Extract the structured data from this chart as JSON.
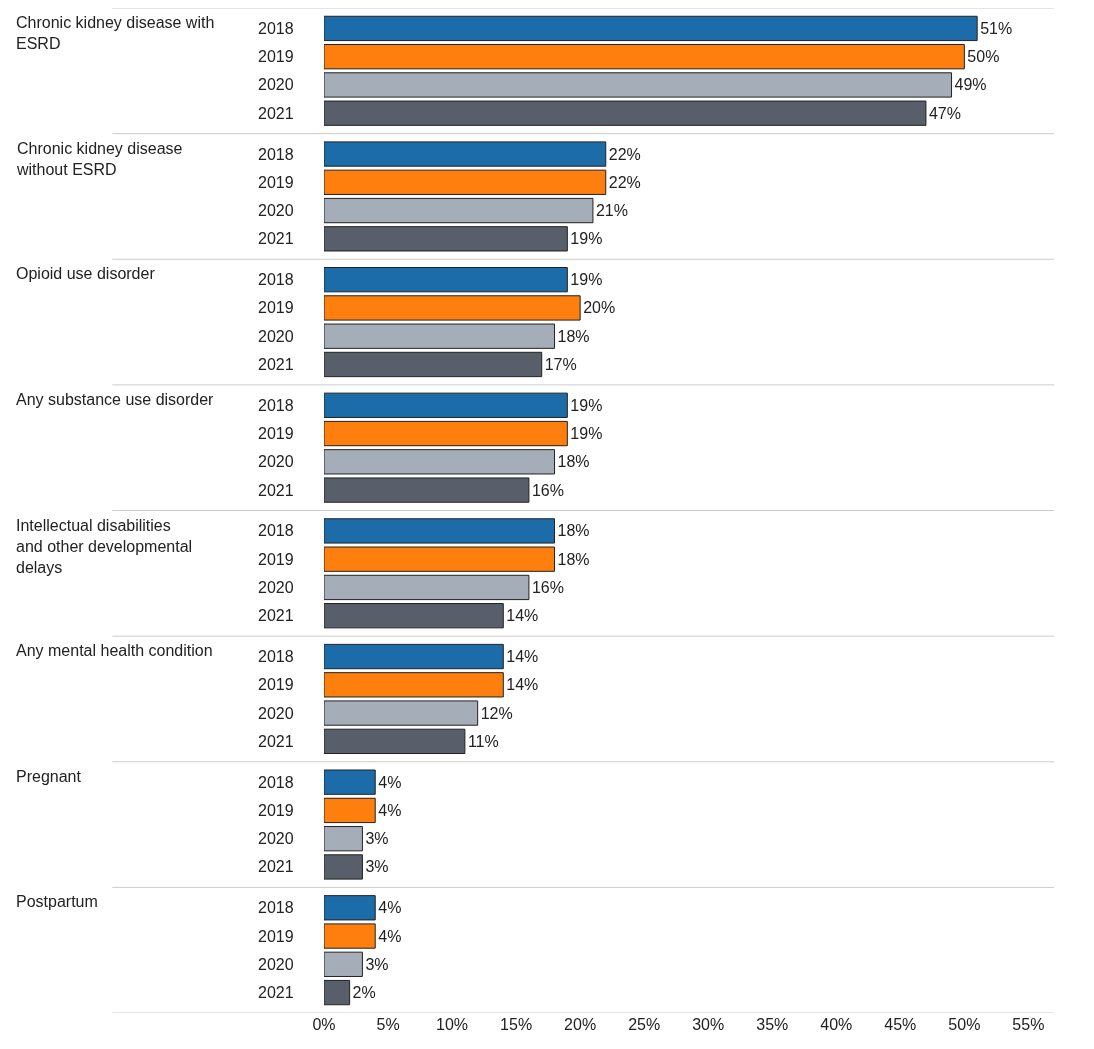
{
  "chart_data": {
    "type": "bar",
    "orientation": "horizontal",
    "categories": [
      "Chronic kidney disease with ESRD",
      "Chronic kidney disease without ESRD",
      "Opioid use disorder",
      "Any substance use disorder",
      "Intellectual disabilities and other developmental delays",
      "Any mental health condition",
      "Pregnant",
      "Postpartum"
    ],
    "series": [
      {
        "name": "2018",
        "color": "#1b6ca8",
        "values": [
          51,
          22,
          19,
          19,
          18,
          14,
          4,
          4
        ],
        "value_labels": [
          "51%",
          "22%",
          "19%",
          "19%",
          "18%",
          "14%",
          "4%",
          "4%"
        ]
      },
      {
        "name": "2019",
        "color": "#ff7f0e",
        "values": [
          50,
          22,
          20,
          19,
          18,
          14,
          4,
          4
        ],
        "value_labels": [
          "50%",
          "22%",
          "20%",
          "19%",
          "18%",
          "14%",
          "4%",
          "4%"
        ]
      },
      {
        "name": "2020",
        "color": "#a5adb8",
        "values": [
          49,
          21,
          18,
          18,
          16,
          12,
          3,
          3
        ],
        "value_labels": [
          "49%",
          "21%",
          "18%",
          "18%",
          "16%",
          "12%",
          "3%",
          "3%"
        ]
      },
      {
        "name": "2021",
        "color": "#585e6a",
        "values": [
          47,
          19,
          17,
          16,
          14,
          11,
          3,
          2
        ],
        "value_labels": [
          "47%",
          "19%",
          "17%",
          "16%",
          "14%",
          "11%",
          "3%",
          "2%"
        ]
      }
    ],
    "xlim": [
      0,
      57
    ],
    "xticks": [
      {
        "value": 0,
        "label": "0%"
      },
      {
        "value": 5,
        "label": "5%"
      },
      {
        "value": 10,
        "label": "10%"
      },
      {
        "value": 15,
        "label": "15%"
      },
      {
        "value": 20,
        "label": "20%"
      },
      {
        "value": 25,
        "label": "25%"
      },
      {
        "value": 30,
        "label": "30%"
      },
      {
        "value": 35,
        "label": "35%"
      },
      {
        "value": 40,
        "label": "40%"
      },
      {
        "value": 45,
        "label": "45%"
      },
      {
        "value": 50,
        "label": "50%"
      },
      {
        "value": 55,
        "label": "55%"
      }
    ],
    "grid": "y",
    "legend": false
  }
}
